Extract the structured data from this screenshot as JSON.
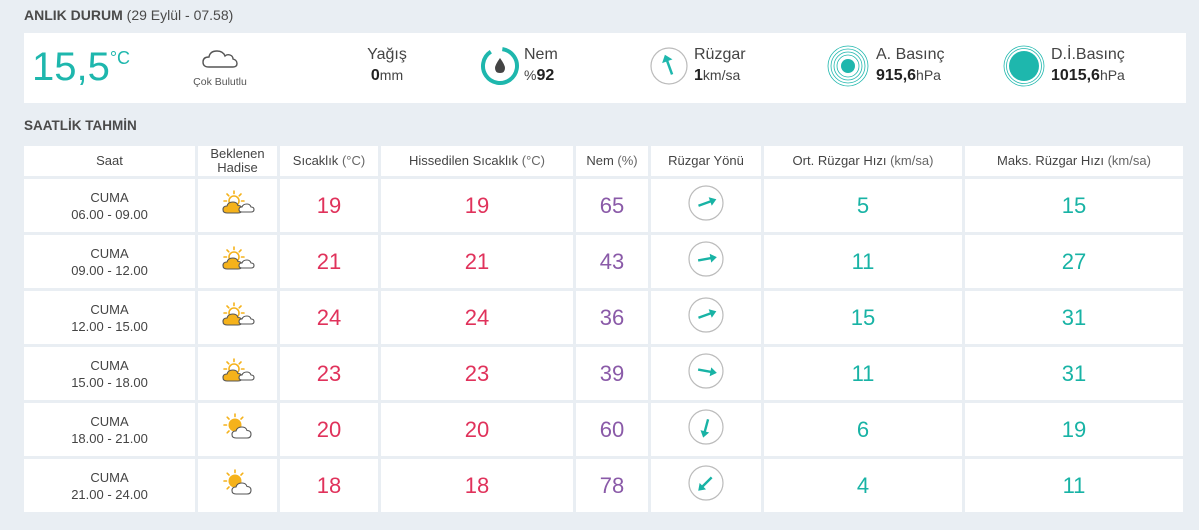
{
  "current": {
    "title": "ANLIK DURUM",
    "time": "(29 Eylül - 07.58)",
    "temperature": "15,5",
    "temp_unit": "°C",
    "condition": "Çok Bulutlu",
    "rain_label": "Yağış",
    "rain_value": "0",
    "rain_unit": "mm",
    "humidity_label": "Nem",
    "humidity_prefix": "%",
    "humidity_value": "92",
    "wind_label": "Rüzgar",
    "wind_value": "1",
    "wind_unit": "km/sa",
    "pressure_label": "A. Basınç",
    "pressure_value": "915,6",
    "pressure_unit": "hPa",
    "sea_pressure_label": "D.İ.Basınç",
    "sea_pressure_value": "1015,6",
    "sea_pressure_unit": "hPa",
    "accent_color": "#1eb7ad"
  },
  "hourly": {
    "title": "SAATLİK TAHMİN",
    "headers": {
      "time": "Saat",
      "event_line1": "Beklenen",
      "event_line2": "Hadise",
      "temp": "Sıcaklık",
      "temp_unit": "(°C)",
      "feels": "Hissedilen Sıcaklık",
      "feels_unit": "(°C)",
      "humidity": "Nem",
      "humidity_unit": "(%)",
      "wind_dir": "Rüzgar Yönü",
      "avg_wind": "Ort. Rüzgar Hızı",
      "avg_wind_unit": "(km/sa)",
      "max_wind": "Maks. Rüzgar Hızı",
      "max_wind_unit": "(km/sa)"
    },
    "rows": [
      {
        "day": "CUMA",
        "range": "06.00 - 09.00",
        "icon": "partly-cloudy-sun-icon",
        "temp": "19",
        "feels": "19",
        "humidity": "65",
        "wind_dir_deg": 70,
        "avg_wind": "5",
        "max_wind": "15"
      },
      {
        "day": "CUMA",
        "range": "09.00 - 12.00",
        "icon": "partly-cloudy-sun-icon",
        "temp": "21",
        "feels": "21",
        "humidity": "43",
        "wind_dir_deg": 80,
        "avg_wind": "11",
        "max_wind": "27"
      },
      {
        "day": "CUMA",
        "range": "12.00 - 15.00",
        "icon": "partly-cloudy-sun-icon",
        "temp": "24",
        "feels": "24",
        "humidity": "36",
        "wind_dir_deg": 70,
        "avg_wind": "15",
        "max_wind": "31"
      },
      {
        "day": "CUMA",
        "range": "15.00 - 18.00",
        "icon": "partly-cloudy-sun-icon",
        "temp": "23",
        "feels": "23",
        "humidity": "39",
        "wind_dir_deg": 100,
        "avg_wind": "11",
        "max_wind": "31"
      },
      {
        "day": "CUMA",
        "range": "18.00 - 21.00",
        "icon": "sun-cloud-icon",
        "temp": "20",
        "feels": "20",
        "humidity": "60",
        "wind_dir_deg": 195,
        "avg_wind": "6",
        "max_wind": "19"
      },
      {
        "day": "CUMA",
        "range": "21.00 - 24.00",
        "icon": "sun-cloud-icon",
        "temp": "18",
        "feels": "18",
        "humidity": "78",
        "wind_dir_deg": 225,
        "avg_wind": "4",
        "max_wind": "11"
      }
    ]
  }
}
